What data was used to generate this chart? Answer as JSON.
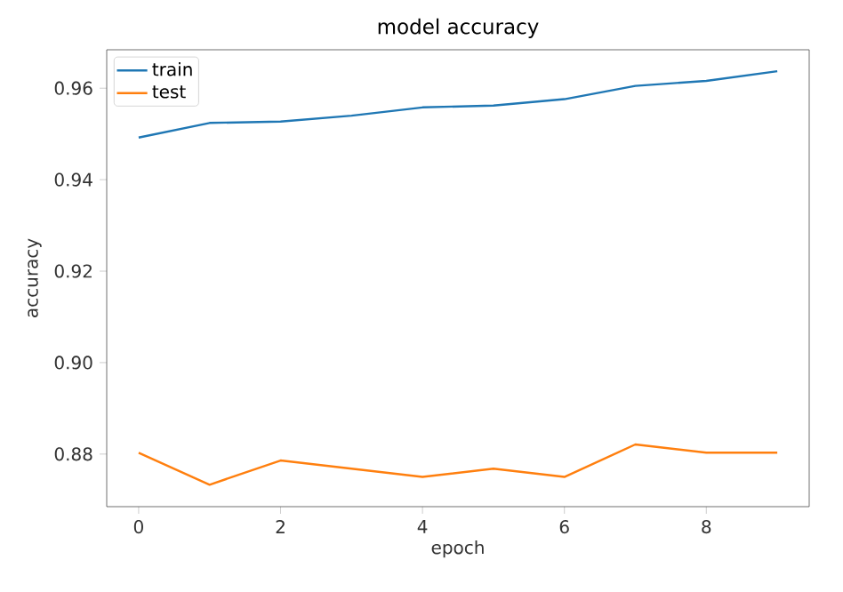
{
  "chart_data": {
    "type": "line",
    "title": "model accuracy",
    "xlabel": "epoch",
    "ylabel": "accuracy",
    "x": [
      0,
      1,
      2,
      3,
      4,
      5,
      6,
      7,
      8,
      9
    ],
    "series": [
      {
        "name": "train",
        "color": "#1f77b4",
        "values": [
          0.9492,
          0.9524,
          0.9527,
          0.954,
          0.9558,
          0.9562,
          0.9576,
          0.9605,
          0.9616,
          0.9637
        ]
      },
      {
        "name": "test",
        "color": "#ff7f0e",
        "values": [
          0.8803,
          0.8733,
          0.8786,
          0.8768,
          0.875,
          0.8768,
          0.875,
          0.8821,
          0.8803,
          0.8803
        ]
      }
    ],
    "xlim": [
      -0.45,
      9.45
    ],
    "ylim": [
      0.8685,
      0.9684
    ],
    "xticks": [
      0,
      2,
      4,
      6,
      8
    ],
    "yticks": [
      0.88,
      {
        "value": 0.9,
        "label": "0.90"
      },
      0.92,
      0.94,
      0.96
    ],
    "legend": "top left",
    "grid": false
  }
}
